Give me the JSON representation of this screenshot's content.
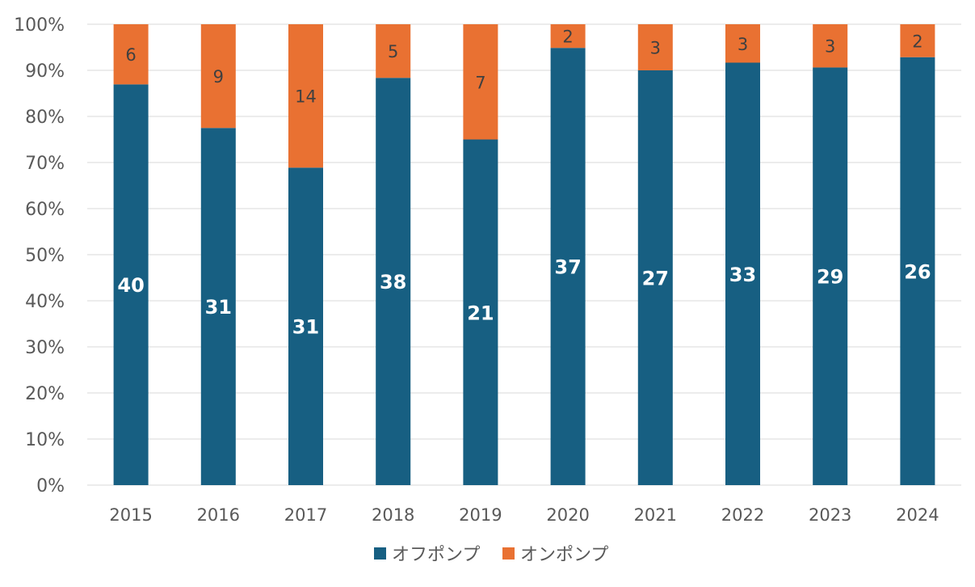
{
  "chart_data": {
    "type": "bar",
    "stacking": "percent",
    "categories": [
      "2015",
      "2016",
      "2017",
      "2018",
      "2019",
      "2020",
      "2021",
      "2022",
      "2023",
      "2024"
    ],
    "series": [
      {
        "name": "オフポンプ",
        "values": [
          40,
          31,
          31,
          38,
          21,
          37,
          27,
          33,
          29,
          26
        ],
        "color": "#175f82"
      },
      {
        "name": "オンポンプ",
        "values": [
          6,
          9,
          14,
          5,
          7,
          2,
          3,
          3,
          3,
          2
        ],
        "color": "#e97132"
      }
    ],
    "y_ticks": [
      "0%",
      "10%",
      "20%",
      "30%",
      "40%",
      "50%",
      "60%",
      "70%",
      "80%",
      "90%",
      "100%"
    ],
    "ylim": [
      0,
      100
    ],
    "grid": true,
    "legend_position": "bottom",
    "data_labels": true,
    "colors": {
      "label_on_dark": "#ffffff",
      "label_on_light": "#404040",
      "axis_text": "#595959",
      "gridline": "#d9d9d9"
    }
  }
}
